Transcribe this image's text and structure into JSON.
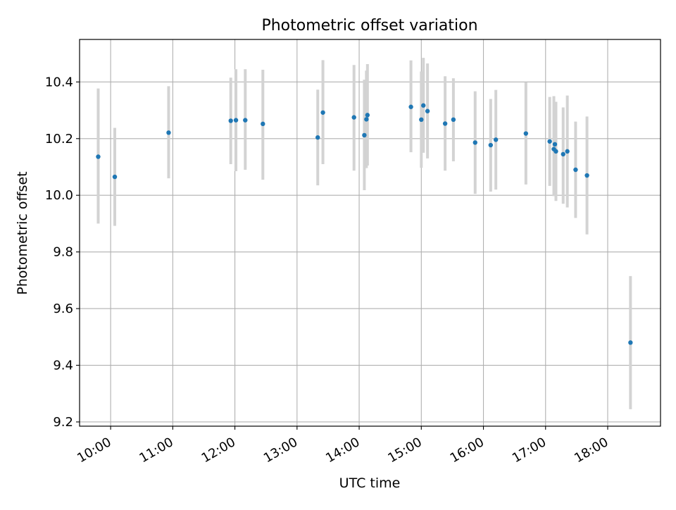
{
  "chart_data": {
    "type": "scatter",
    "title": "Photometric offset variation",
    "xlabel": "UTC time",
    "ylabel": "Photometric offset",
    "x_type": "time",
    "xlim": [
      "09:30",
      "18:51"
    ],
    "ylim": [
      9.185,
      10.55
    ],
    "xticks": [
      "10:00",
      "11:00",
      "12:00",
      "13:00",
      "14:00",
      "15:00",
      "16:00",
      "17:00",
      "18:00"
    ],
    "yticks": [
      9.2,
      9.4,
      9.6,
      9.8,
      10.0,
      10.2,
      10.4
    ],
    "grid": true,
    "legend": null,
    "point_color": "#1f77b4",
    "errorbar_color": "#d3d3d3",
    "series": [
      {
        "points": [
          {
            "x": "09:48",
            "y": 10.136,
            "err_low": 9.9,
            "err_high": 10.377
          },
          {
            "x": "10:04",
            "y": 10.065,
            "err_low": 9.892,
            "err_high": 10.238
          },
          {
            "x": "10:56",
            "y": 10.221,
            "err_low": 10.06,
            "err_high": 10.385
          },
          {
            "x": "11:56",
            "y": 10.263,
            "err_low": 10.11,
            "err_high": 10.415
          },
          {
            "x": "12:01",
            "y": 10.265,
            "err_low": 10.085,
            "err_high": 10.445
          },
          {
            "x": "12:10",
            "y": 10.265,
            "err_low": 10.09,
            "err_high": 10.445
          },
          {
            "x": "12:27",
            "y": 10.252,
            "err_low": 10.055,
            "err_high": 10.443
          },
          {
            "x": "13:20",
            "y": 10.204,
            "err_low": 10.035,
            "err_high": 10.373
          },
          {
            "x": "13:25",
            "y": 10.292,
            "err_low": 10.11,
            "err_high": 10.477
          },
          {
            "x": "13:55",
            "y": 10.275,
            "err_low": 10.087,
            "err_high": 10.46
          },
          {
            "x": "14:05",
            "y": 10.212,
            "err_low": 10.018,
            "err_high": 10.408
          },
          {
            "x": "14:07",
            "y": 10.268,
            "err_low": 10.096,
            "err_high": 10.44
          },
          {
            "x": "14:08",
            "y": 10.283,
            "err_low": 10.105,
            "err_high": 10.463
          },
          {
            "x": "14:50",
            "y": 10.312,
            "err_low": 10.152,
            "err_high": 10.476
          },
          {
            "x": "15:00",
            "y": 10.267,
            "err_low": 10.097,
            "err_high": 10.437
          },
          {
            "x": "15:02",
            "y": 10.317,
            "err_low": 10.15,
            "err_high": 10.485
          },
          {
            "x": "15:06",
            "y": 10.297,
            "err_low": 10.13,
            "err_high": 10.465
          },
          {
            "x": "15:23",
            "y": 10.253,
            "err_low": 10.087,
            "err_high": 10.42
          },
          {
            "x": "15:31",
            "y": 10.267,
            "err_low": 10.12,
            "err_high": 10.413
          },
          {
            "x": "15:52",
            "y": 10.186,
            "err_low": 10.005,
            "err_high": 10.367
          },
          {
            "x": "16:07",
            "y": 10.177,
            "err_low": 10.013,
            "err_high": 10.34
          },
          {
            "x": "16:12",
            "y": 10.196,
            "err_low": 10.02,
            "err_high": 10.372
          },
          {
            "x": "16:41",
            "y": 10.218,
            "err_low": 10.038,
            "err_high": 10.398
          },
          {
            "x": "17:04",
            "y": 10.19,
            "err_low": 10.033,
            "err_high": 10.347
          },
          {
            "x": "17:08",
            "y": 10.163,
            "err_low": 9.997,
            "err_high": 10.35
          },
          {
            "x": "17:09",
            "y": 10.18,
            "err_low": 10.0,
            "err_high": 10.33
          },
          {
            "x": "17:10",
            "y": 10.155,
            "err_low": 9.98,
            "err_high": 10.33
          },
          {
            "x": "17:17",
            "y": 10.145,
            "err_low": 9.97,
            "err_high": 10.31
          },
          {
            "x": "17:21",
            "y": 10.155,
            "err_low": 9.957,
            "err_high": 10.352
          },
          {
            "x": "17:29",
            "y": 10.09,
            "err_low": 9.92,
            "err_high": 10.26
          },
          {
            "x": "17:40",
            "y": 10.07,
            "err_low": 9.862,
            "err_high": 10.278
          },
          {
            "x": "18:22",
            "y": 9.48,
            "err_low": 9.245,
            "err_high": 9.715
          }
        ]
      }
    ]
  }
}
